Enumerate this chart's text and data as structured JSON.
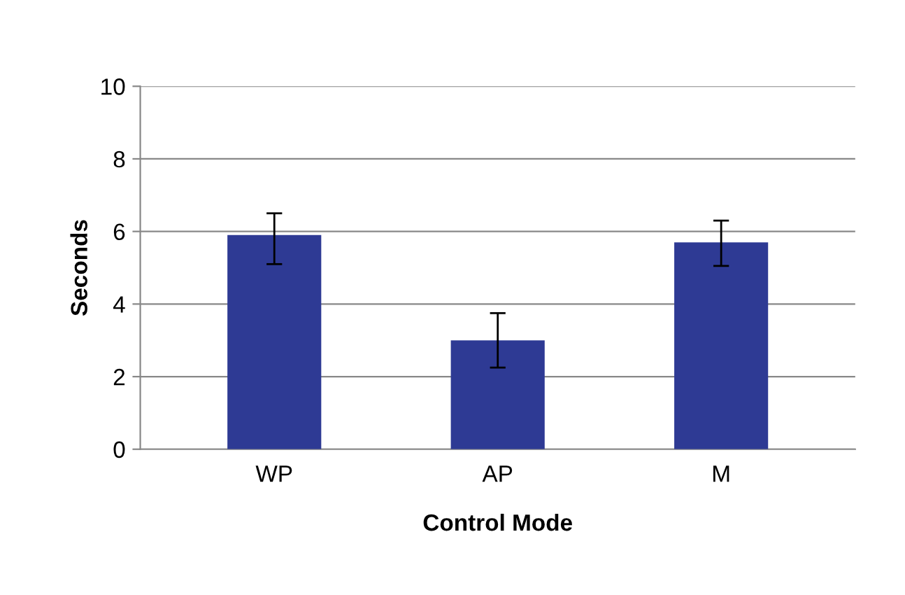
{
  "chart_data": {
    "type": "bar",
    "xlabel": "Control Mode",
    "ylabel": "Seconds",
    "categories": [
      "WP",
      "AP",
      "M"
    ],
    "values": [
      5.9,
      3.0,
      5.7
    ],
    "errors": [
      [
        5.1,
        6.5
      ],
      [
        2.25,
        3.75
      ],
      [
        5.05,
        6.3
      ]
    ],
    "color": "#2e3a94",
    "ylim": [
      0,
      10
    ],
    "yticks": [
      0,
      2,
      4,
      6,
      8,
      10
    ],
    "grid": "y"
  }
}
